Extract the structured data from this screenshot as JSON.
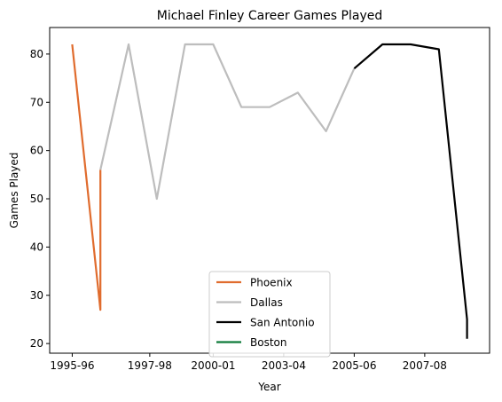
{
  "chart_data": {
    "type": "line",
    "title": "Michael Finley Career Games Played",
    "xlabel": "Year",
    "ylabel": "Games Played",
    "xlim": [
      -0.8,
      14.8
    ],
    "ylim": [
      18,
      85.5
    ],
    "x_ticks": [
      {
        "pos": 0,
        "label": "1995-96"
      },
      {
        "pos": 2.75,
        "label": "1997-98"
      },
      {
        "pos": 5,
        "label": "2000-01"
      },
      {
        "pos": 7.5,
        "label": "2003-04"
      },
      {
        "pos": 10,
        "label": "2005-06"
      },
      {
        "pos": 12.5,
        "label": "2007-08"
      }
    ],
    "y_ticks": [
      20,
      30,
      40,
      50,
      60,
      70,
      80
    ],
    "legend_position": "lower-center",
    "grid": false,
    "series": [
      {
        "name": "Phoenix",
        "color": "#e06c2e",
        "points": [
          [
            0,
            82
          ],
          [
            1,
            27
          ],
          [
            1,
            56
          ]
        ]
      },
      {
        "name": "Dallas",
        "color": "#bdbdbd",
        "points": [
          [
            1,
            56
          ],
          [
            2,
            82
          ],
          [
            3,
            50
          ],
          [
            4,
            82
          ],
          [
            5,
            82
          ],
          [
            6,
            69
          ],
          [
            7,
            69
          ],
          [
            8,
            72
          ],
          [
            9,
            64
          ],
          [
            10,
            77
          ]
        ]
      },
      {
        "name": "San Antonio",
        "color": "#000000",
        "points": [
          [
            10,
            77
          ],
          [
            11,
            82
          ],
          [
            12,
            82
          ],
          [
            13,
            81
          ],
          [
            14,
            25
          ],
          [
            14,
            21
          ]
        ]
      },
      {
        "name": "Boston",
        "color": "#0f7a3a",
        "points": []
      }
    ]
  }
}
